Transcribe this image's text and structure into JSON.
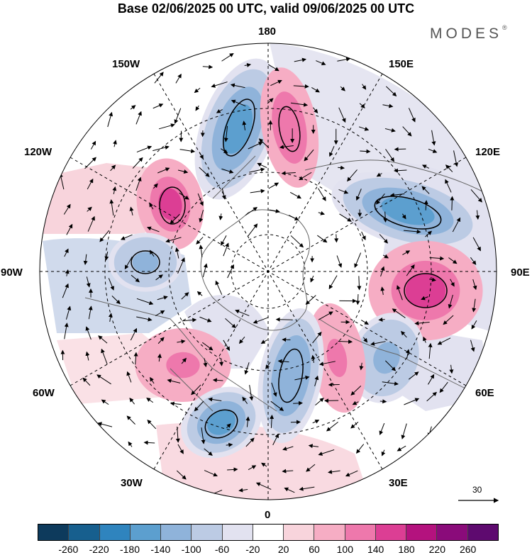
{
  "title": "Base 02/06/2025 00 UTC, valid 09/06/2025 00 UTC",
  "brand": "MODES",
  "brand_mark": "®",
  "longitude_labels": {
    "lon_180": "180",
    "lon_150e": "150E",
    "lon_120e": "120E",
    "lon_90e": "90E",
    "lon_60e": "60E",
    "lon_30e": "30E",
    "lon_0": "0",
    "lon_30w": "30W",
    "lon_60w": "60W",
    "lon_90w": "90W",
    "lon_120w": "120W",
    "lon_150w": "150W"
  },
  "reference_vector": "30",
  "colorbar": {
    "labels": [
      "-260",
      "-220",
      "-180",
      "-140",
      "-100",
      "-60",
      "-20",
      "20",
      "60",
      "100",
      "140",
      "180",
      "220",
      "260"
    ],
    "colors": [
      "#0d3a5c",
      "#175f8e",
      "#2f84be",
      "#5c9fcf",
      "#8fb3da",
      "#bccbe4",
      "#e2e2f0",
      "#ffffff",
      "#f8d4dc",
      "#f6adc4",
      "#ee78ac",
      "#dc3e94",
      "#b4127e",
      "#8a0b7a",
      "#5e0a6f"
    ]
  },
  "anomaly_centres": [
    {
      "label": "pos-150W-lat45",
      "value": 210
    },
    {
      "label": "neg-90W",
      "value": -160
    },
    {
      "label": "neg-165W",
      "value": -230
    },
    {
      "label": "pos-165E",
      "value": 170
    },
    {
      "label": "neg-120E",
      "value": -200
    },
    {
      "label": "pos-90E",
      "value": 220
    },
    {
      "label": "neg-60E",
      "value": -150
    },
    {
      "label": "pos-30E",
      "value": 150
    },
    {
      "label": "neg-10E",
      "value": -180
    },
    {
      "label": "pos-45W",
      "value": 140
    },
    {
      "label": "neg-30W",
      "value": -190
    }
  ]
}
